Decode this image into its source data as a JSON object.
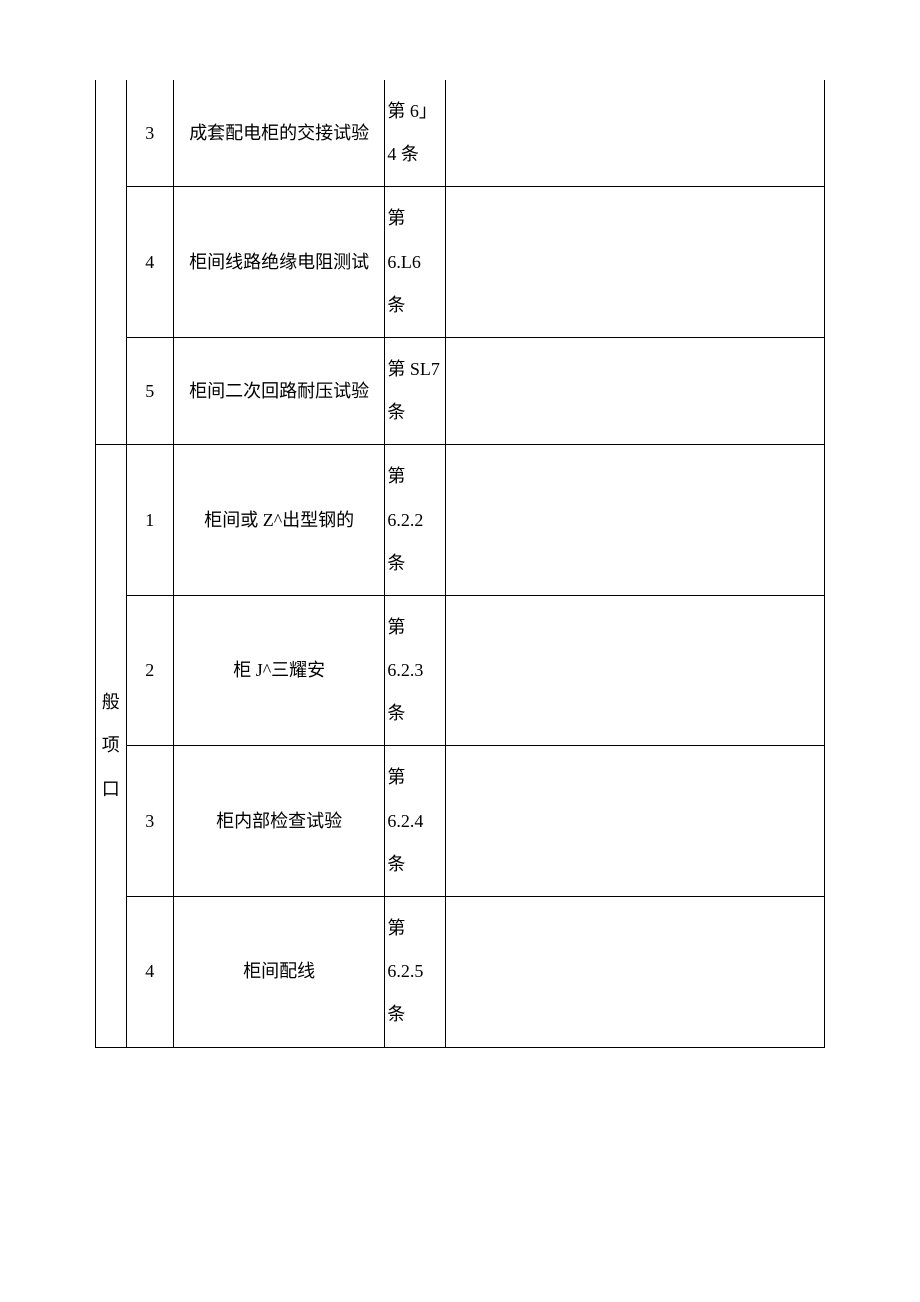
{
  "table": {
    "border_color": "#000000",
    "background_color": "#ffffff",
    "font_family": "SimSun",
    "font_size_pt": 14,
    "text_color": "#000000",
    "line_height": 2.4,
    "column_widths_pct": [
      4.2,
      6.5,
      29,
      8.3,
      52
    ],
    "column_alignment": [
      "center",
      "center",
      "center",
      "left",
      "left"
    ]
  },
  "section_a": {
    "label": "",
    "rows": [
      {
        "num": "3",
        "desc": "成套配电柜的交接试验",
        "ref": "第 6」4 条",
        "blank": ""
      },
      {
        "num": "4",
        "desc": "柜间线路绝缘电阻测试",
        "ref": "第 6.L6 条",
        "blank": ""
      },
      {
        "num": "5",
        "desc": "柜间二次回路耐压试验",
        "ref": "第 SL7 条",
        "blank": ""
      }
    ]
  },
  "section_b": {
    "label": "般项口",
    "rows": [
      {
        "num": "1",
        "desc": "柜间或 Z^出型钢的",
        "ref": "第 6.2.2 条",
        "blank": ""
      },
      {
        "num": "2",
        "desc": "柜 J^三耀安",
        "ref": "第 6.2.3 条",
        "blank": ""
      },
      {
        "num": "3",
        "desc": "柜内部检查试验",
        "ref": "第 6.2.4 条",
        "blank": ""
      },
      {
        "num": "4",
        "desc": "柜间配线",
        "ref": "第 6.2.5 条",
        "blank": ""
      }
    ]
  }
}
